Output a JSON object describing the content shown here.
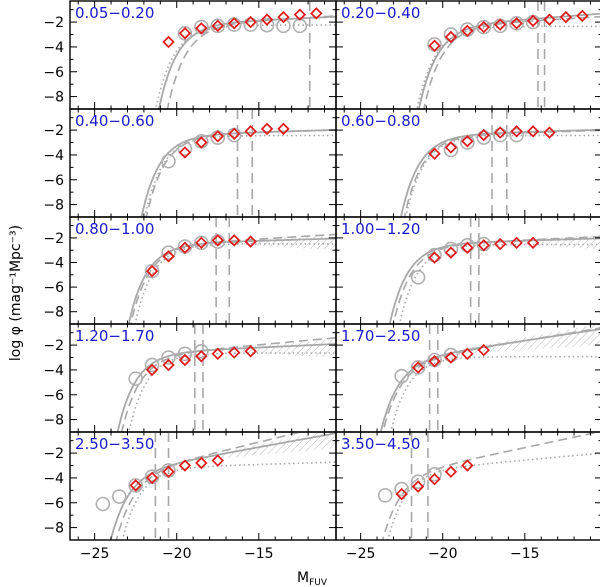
{
  "colors": {
    "frame": "#000000",
    "model_line": "#a8a8a8",
    "open_circle": "#b0b0b0",
    "diamond": "#e01818",
    "label": "#1a1acc",
    "hatch": "#b8b8b8"
  },
  "chart_data": {
    "type": "scatter",
    "layout": {
      "rows": 5,
      "cols": 2
    },
    "xlabel": "M",
    "xlabel_sub": "FUV",
    "ylabel": "log φ (mag⁻¹Mpc⁻³)",
    "xlim": [
      -26.5,
      -10.3
    ],
    "ylim": [
      -9,
      -0.3
    ],
    "x_ticks": [
      -25,
      -20,
      -15
    ],
    "x_tick_labels": [
      "−25",
      "−20",
      "−15"
    ],
    "y_ticks": [
      -2,
      -4,
      -6,
      -8
    ],
    "y_tick_labels": [
      "−2",
      "−4",
      "−6",
      "−8"
    ],
    "panels": [
      {
        "label": "0.05−0.20",
        "schechter": {
          "Mstar": -18.1,
          "logphi": -2.0,
          "alpha": -1.15
        },
        "dotted": {
          "Mstar": -18.3,
          "logphi": -2.2,
          "alpha": -1.0
        },
        "dashed": {
          "Mstar": -17.6,
          "logphi": -2.05,
          "alpha": -1.2
        },
        "vdashed": [
          -11.9
        ],
        "hatch": [
          -22.5,
          -20.5
        ],
        "circles": [
          [
            -19.5,
            -2.9
          ],
          [
            -18.5,
            -2.4
          ],
          [
            -17.5,
            -2.3
          ],
          [
            -16.5,
            -2.2
          ],
          [
            -15.5,
            -2.2
          ],
          [
            -14.5,
            -2.25
          ],
          [
            -13.5,
            -2.3
          ],
          [
            -12.5,
            -2.3
          ]
        ],
        "diamonds": [
          [
            -20.5,
            -3.6
          ],
          [
            -19.5,
            -2.9
          ],
          [
            -18.5,
            -2.5
          ],
          [
            -17.5,
            -2.3
          ],
          [
            -16.5,
            -2.1
          ],
          [
            -15.5,
            -2.0
          ],
          [
            -14.5,
            -1.8
          ],
          [
            -13.5,
            -1.6
          ],
          [
            -12.5,
            -1.4
          ],
          [
            -11.5,
            -1.3
          ]
        ]
      },
      {
        "label": "0.20−0.40",
        "schechter": {
          "Mstar": -18.5,
          "logphi": -2.1,
          "alpha": -1.25
        },
        "dotted": {
          "Mstar": -18.6,
          "logphi": -2.3,
          "alpha": -1.0
        },
        "dashed": {
          "Mstar": -18.2,
          "logphi": -2.15,
          "alpha": -1.2
        },
        "vdashed": [
          -14.2,
          -13.8
        ],
        "hatch": null,
        "circles": [
          [
            -20.5,
            -3.8
          ],
          [
            -19.5,
            -3.0
          ],
          [
            -18.5,
            -2.6
          ],
          [
            -17.5,
            -2.4
          ],
          [
            -16.5,
            -2.3
          ],
          [
            -15.5,
            -2.1
          ],
          [
            -14.5,
            -2.0
          ]
        ],
        "diamonds": [
          [
            -20.5,
            -3.9
          ],
          [
            -19.5,
            -3.2
          ],
          [
            -18.5,
            -2.7
          ],
          [
            -17.5,
            -2.4
          ],
          [
            -16.5,
            -2.2
          ],
          [
            -15.5,
            -2.1
          ],
          [
            -14.5,
            -1.9
          ],
          [
            -13.5,
            -1.8
          ],
          [
            -12.5,
            -1.6
          ],
          [
            -11.5,
            -1.5
          ]
        ]
      },
      {
        "label": "0.40−0.60",
        "schechter": {
          "Mstar": -19.2,
          "logphi": -2.3,
          "alpha": -1.1
        },
        "dotted": {
          "Mstar": -19.0,
          "logphi": -2.4,
          "alpha": -1.0
        },
        "dashed": {
          "Mstar": -18.9,
          "logphi": -2.3,
          "alpha": -1.1
        },
        "vdashed": [
          -16.3,
          -15.4
        ],
        "hatch": null,
        "circles": [
          [
            -20.5,
            -4.5
          ],
          [
            -19.5,
            -3.5
          ],
          [
            -18.5,
            -2.9
          ],
          [
            -17.5,
            -2.6
          ],
          [
            -16.5,
            -2.4
          ]
        ],
        "diamonds": [
          [
            -19.5,
            -3.8
          ],
          [
            -18.5,
            -3.0
          ],
          [
            -17.5,
            -2.5
          ],
          [
            -16.5,
            -2.3
          ],
          [
            -15.5,
            -2.1
          ],
          [
            -14.5,
            -1.9
          ],
          [
            -13.5,
            -1.9
          ]
        ]
      },
      {
        "label": "0.60−0.80",
        "schechter": {
          "Mstar": -19.6,
          "logphi": -2.3,
          "alpha": -1.1
        },
        "dotted": {
          "Mstar": -19.3,
          "logphi": -2.4,
          "alpha": -1.0
        },
        "dashed": {
          "Mstar": -19.4,
          "logphi": -2.35,
          "alpha": -1.1
        },
        "vdashed": [
          -17.0,
          -16.1
        ],
        "hatch": null,
        "circles": [
          [
            -19.5,
            -3.6
          ],
          [
            -18.5,
            -3.0
          ],
          [
            -17.5,
            -2.6
          ],
          [
            -16.5,
            -2.4
          ],
          [
            -15.5,
            -2.4
          ]
        ],
        "diamonds": [
          [
            -20.5,
            -3.9
          ],
          [
            -19.5,
            -3.4
          ],
          [
            -18.5,
            -2.9
          ],
          [
            -17.5,
            -2.4
          ],
          [
            -16.5,
            -2.2
          ],
          [
            -15.5,
            -2.1
          ],
          [
            -14.5,
            -2.1
          ],
          [
            -13.5,
            -2.2
          ]
        ]
      },
      {
        "label": "0.80−1.00",
        "schechter": {
          "Mstar": -20.0,
          "logphi": -2.4,
          "alpha": -1.1
        },
        "dotted": {
          "Mstar": -19.6,
          "logphi": -2.45,
          "alpha": -1.0
        },
        "dashed": {
          "Mstar": -19.9,
          "logphi": -2.45,
          "alpha": -1.2
        },
        "vdashed": [
          -17.6,
          -16.8
        ],
        "hatch": [
          -17.0,
          -10.3
        ],
        "circles": [
          [
            -21.5,
            -4.7
          ],
          [
            -20.5,
            -3.2
          ],
          [
            -19.5,
            -2.7
          ],
          [
            -18.5,
            -2.4
          ],
          [
            -17.5,
            -2.3
          ]
        ],
        "diamonds": [
          [
            -21.5,
            -4.7
          ],
          [
            -20.5,
            -3.5
          ],
          [
            -19.5,
            -2.8
          ],
          [
            -18.5,
            -2.4
          ],
          [
            -17.5,
            -2.2
          ],
          [
            -16.5,
            -2.2
          ],
          [
            -15.5,
            -2.3
          ]
        ]
      },
      {
        "label": "1.00−1.20",
        "schechter": {
          "Mstar": -20.3,
          "logphi": -2.4,
          "alpha": -1.1
        },
        "dotted": {
          "Mstar": -19.7,
          "logphi": -2.5,
          "alpha": -1.0
        },
        "dashed": {
          "Mstar": -20.1,
          "logphi": -2.45,
          "alpha": -1.15
        },
        "vdashed": [
          -18.3,
          -17.8
        ],
        "hatch": [
          -16.5,
          -10.3
        ],
        "circles": [
          [
            -21.5,
            -5.2
          ],
          [
            -20.5,
            -3.4
          ],
          [
            -19.5,
            -2.9
          ],
          [
            -18.5,
            -2.6
          ],
          [
            -17.5,
            -2.5
          ]
        ],
        "diamonds": [
          [
            -20.5,
            -3.6
          ],
          [
            -19.5,
            -3.2
          ],
          [
            -18.5,
            -2.8
          ],
          [
            -17.5,
            -2.6
          ],
          [
            -16.5,
            -2.5
          ],
          [
            -15.5,
            -2.4
          ],
          [
            -14.5,
            -2.4
          ]
        ]
      },
      {
        "label": "1.20−1.70",
        "schechter": {
          "Mstar": -20.7,
          "logphi": -2.5,
          "alpha": -1.15
        },
        "dotted": {
          "Mstar": -20.0,
          "logphi": -2.6,
          "alpha": -1.0
        },
        "dashed": {
          "Mstar": -20.5,
          "logphi": -2.6,
          "alpha": -1.3
        },
        "vdashed": [
          -18.9,
          -18.4
        ],
        "hatch": [
          -18.0,
          -10.3
        ],
        "circles": [
          [
            -22.5,
            -4.7
          ],
          [
            -21.5,
            -3.6
          ],
          [
            -20.5,
            -3.0
          ],
          [
            -19.5,
            -2.7
          ],
          [
            -18.5,
            -2.5
          ]
        ],
        "diamonds": [
          [
            -21.5,
            -4.0
          ],
          [
            -20.5,
            -3.6
          ],
          [
            -19.5,
            -3.2
          ],
          [
            -18.5,
            -2.9
          ],
          [
            -17.5,
            -2.7
          ],
          [
            -16.5,
            -2.6
          ],
          [
            -15.5,
            -2.5
          ]
        ]
      },
      {
        "label": "1.70−2.50",
        "schechter": {
          "Mstar": -21.0,
          "logphi": -2.8,
          "alpha": -1.5
        },
        "dotted": {
          "Mstar": -20.3,
          "logphi": -2.9,
          "alpha": -1.0
        },
        "dashed": {
          "Mstar": -20.9,
          "logphi": -2.9,
          "alpha": -1.55
        },
        "vdashed": [
          -20.8,
          -20.3
        ],
        "hatch": [
          -20.0,
          -10.3
        ],
        "circles": [
          [
            -22.5,
            -4.5
          ],
          [
            -21.5,
            -3.8
          ],
          [
            -20.5,
            -3.2
          ],
          [
            -19.5,
            -2.8
          ]
        ],
        "diamonds": [
          [
            -21.5,
            -3.8
          ],
          [
            -20.5,
            -3.3
          ],
          [
            -19.5,
            -3.0
          ],
          [
            -18.5,
            -2.7
          ],
          [
            -17.5,
            -2.4
          ]
        ]
      },
      {
        "label": "2.50−3.50",
        "schechter": {
          "Mstar": -21.3,
          "logphi": -3.0,
          "alpha": -1.6
        },
        "dotted": {
          "Mstar": -20.5,
          "logphi": -3.1,
          "alpha": -1.1
        },
        "dashed": {
          "Mstar": -21.0,
          "logphi": -3.0,
          "alpha": -1.8
        },
        "vdashed": [
          -21.3,
          -20.5
        ],
        "hatch": [
          -19.0,
          -10.3
        ],
        "circles": [
          [
            -24.5,
            -6.1
          ],
          [
            -23.5,
            -5.5
          ],
          [
            -22.5,
            -4.6
          ],
          [
            -21.5,
            -3.9
          ],
          [
            -20.5,
            -3.4
          ]
        ],
        "diamonds": [
          [
            -22.5,
            -4.6
          ],
          [
            -21.5,
            -4.0
          ],
          [
            -20.5,
            -3.5
          ],
          [
            -19.5,
            -3.0
          ],
          [
            -18.5,
            -2.8
          ],
          [
            -17.5,
            -2.6
          ]
        ]
      },
      {
        "label": "3.50−4.50",
        "schechter": null,
        "dotted": {
          "Mstar": -20.6,
          "logphi": -3.2,
          "alpha": -1.3
        },
        "dashed": {
          "Mstar": -21.0,
          "logphi": -3.2,
          "alpha": -1.7
        },
        "vdashed": [
          -21.9,
          -20.9
        ],
        "hatch": null,
        "circles": [
          [
            -23.5,
            -5.4
          ],
          [
            -22.5,
            -4.9
          ],
          [
            -21.5,
            -4.3
          ],
          [
            -20.5,
            -3.7
          ]
        ],
        "diamonds": [
          [
            -22.5,
            -5.3
          ],
          [
            -21.5,
            -4.7
          ],
          [
            -20.5,
            -4.1
          ],
          [
            -19.5,
            -3.5
          ],
          [
            -18.5,
            -3.0
          ]
        ]
      }
    ]
  }
}
